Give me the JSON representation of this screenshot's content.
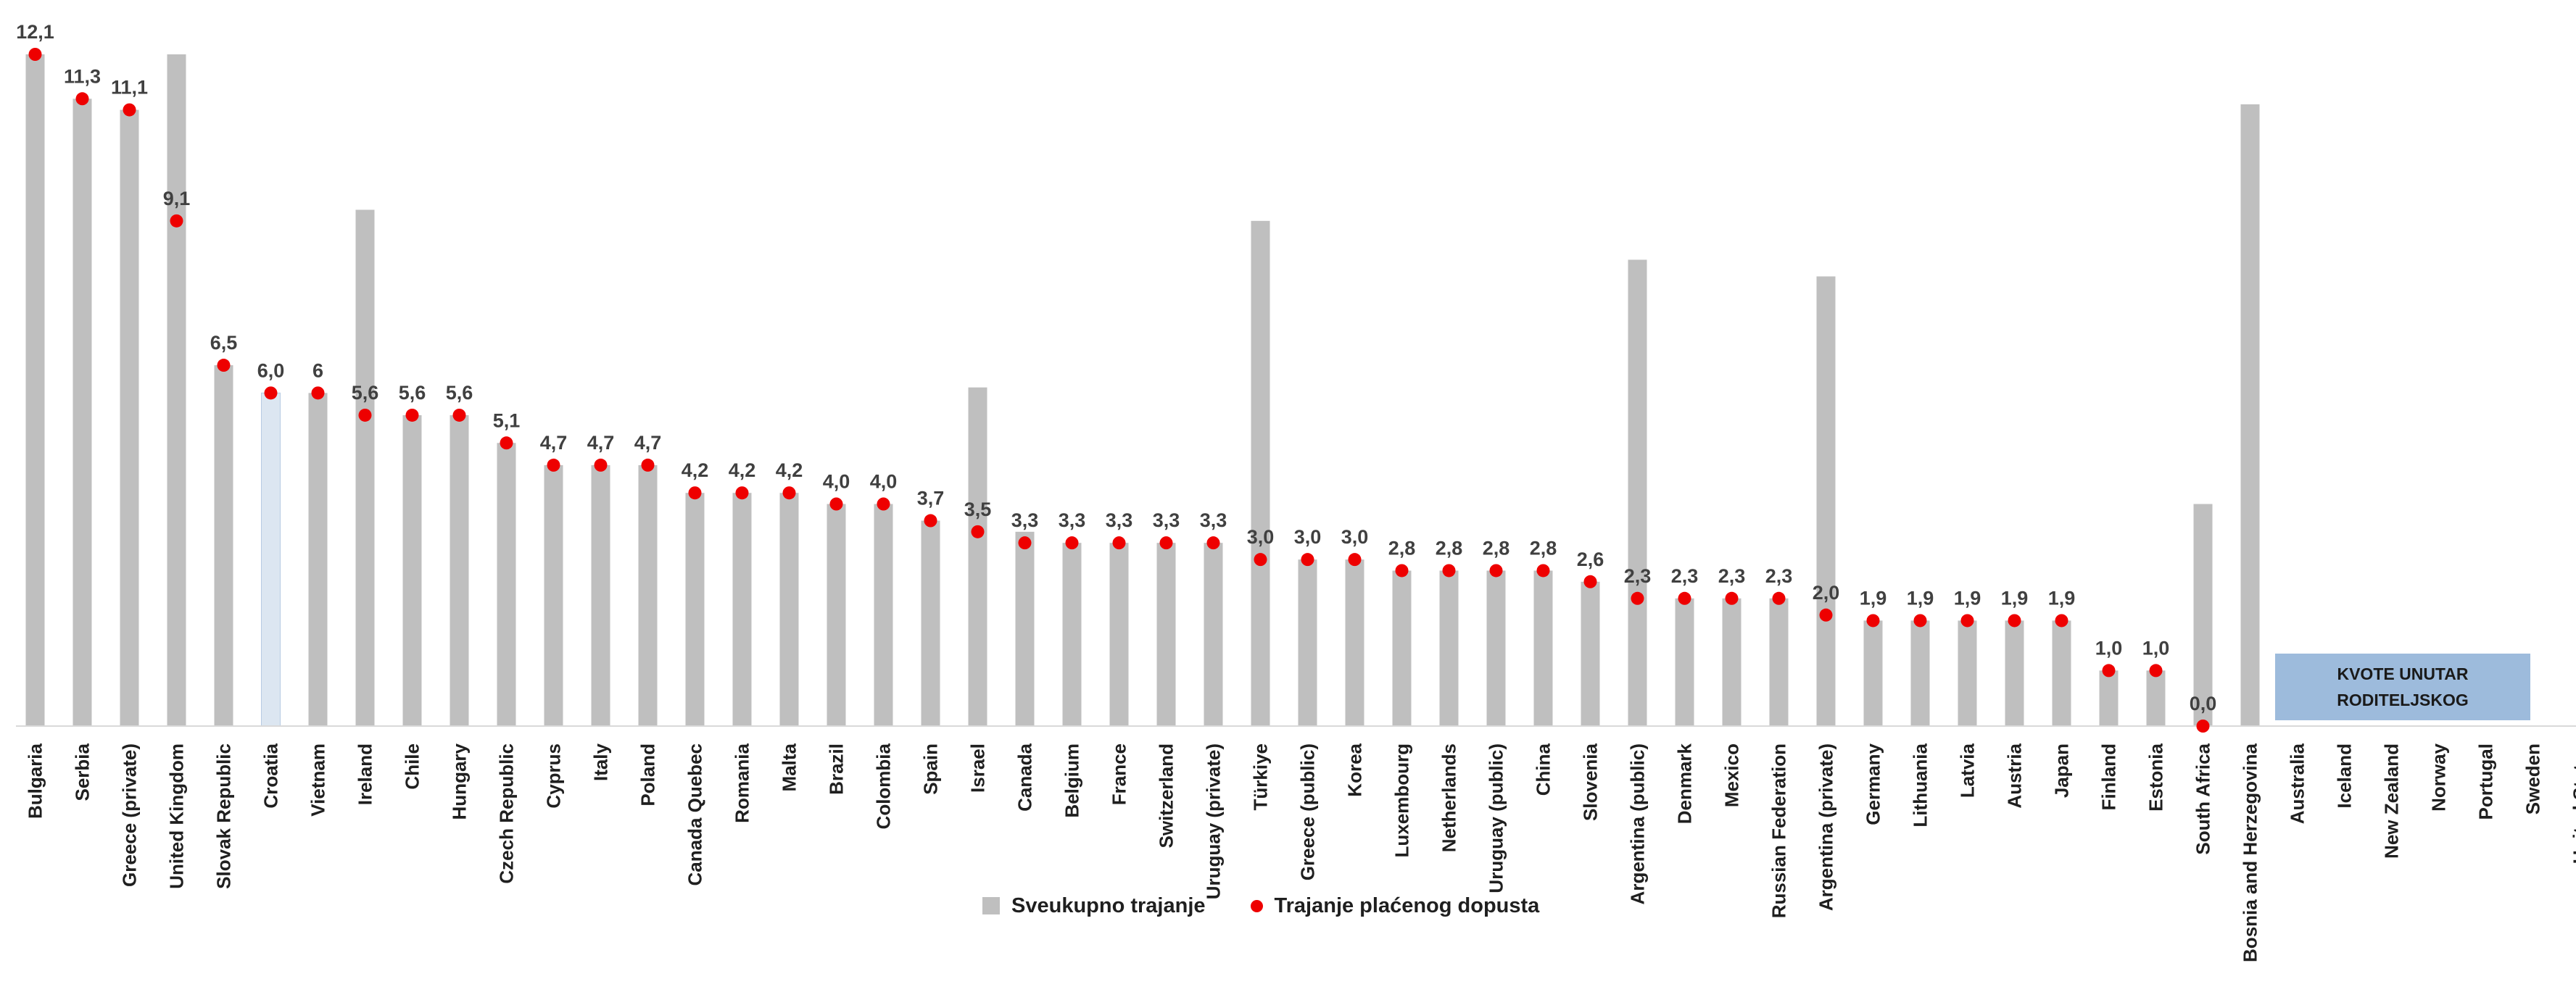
{
  "chart_data": {
    "type": "bar",
    "categories": [
      "Bulgaria",
      "Serbia",
      "Greece (private)",
      "United Kingdom",
      "Slovak Republic",
      "Croatia",
      "Vietnam",
      "Ireland",
      "Chile",
      "Hungary",
      "Czech Republic",
      "Cyprus",
      "Italy",
      "Poland",
      "Canada Quebec",
      "Romania",
      "Malta",
      "Brazil",
      "Colombia",
      "Spain",
      "Israel",
      "Canada",
      "Belgium",
      "France",
      "Switzerland",
      "Uruguay (private)",
      "Türkiye",
      "Greece (public)",
      "Korea",
      "Luxembourg",
      "Netherlands",
      "Uruguay (public)",
      "China",
      "Slovenia",
      "Argentina (public)",
      "Denmark",
      "Mexico",
      "Russian Federation",
      "Argentina (private)",
      "Germany",
      "Lithuania",
      "Latvia",
      "Austria",
      "Japan",
      "Finland",
      "Estonia",
      "South Africa",
      "Bosnia and Herzegovina",
      "Australia",
      "Iceland",
      "New Zealand",
      "Norway",
      "Portugal",
      "Sweden",
      "United States"
    ],
    "series": [
      {
        "name": "Sveukupno trajanje",
        "type": "bar",
        "color": "#bfbfbf",
        "highlight_color": "#dce6f1",
        "highlight_category": "Croatia",
        "values": [
          12.1,
          11.3,
          11.1,
          12.1,
          6.5,
          6.0,
          6.0,
          9.3,
          5.6,
          5.6,
          5.1,
          4.7,
          4.7,
          4.7,
          4.2,
          4.2,
          4.2,
          4.0,
          4.0,
          3.7,
          6.1,
          3.5,
          3.3,
          3.3,
          3.3,
          3.3,
          9.1,
          3.0,
          3.0,
          2.8,
          2.8,
          2.8,
          2.8,
          2.6,
          8.4,
          2.3,
          2.3,
          2.3,
          8.1,
          1.9,
          1.9,
          1.9,
          1.9,
          1.9,
          1.0,
          1.0,
          4.0,
          11.2,
          null,
          null,
          null,
          null,
          null,
          null,
          null
        ]
      },
      {
        "name": "Trajanje plaćenog dopusta",
        "type": "marker",
        "color": "#ee0000",
        "values": [
          12.1,
          11.3,
          11.1,
          9.1,
          6.5,
          6.0,
          6.0,
          5.6,
          5.6,
          5.6,
          5.1,
          4.7,
          4.7,
          4.7,
          4.2,
          4.2,
          4.2,
          4.0,
          4.0,
          3.7,
          3.5,
          3.3,
          3.3,
          3.3,
          3.3,
          3.3,
          3.0,
          3.0,
          3.0,
          2.8,
          2.8,
          2.8,
          2.8,
          2.6,
          2.3,
          2.3,
          2.3,
          2.3,
          2.0,
          1.9,
          1.9,
          1.9,
          1.9,
          1.9,
          1.0,
          1.0,
          0.0,
          null,
          null,
          null,
          null,
          null,
          null,
          null,
          null
        ]
      }
    ],
    "data_labels": [
      "12,1",
      "11,3",
      "11,1",
      "9,1",
      "6,5",
      "6,0",
      "6",
      "5,6",
      "5,6",
      "5,6",
      "5,1",
      "4,7",
      "4,7",
      "4,7",
      "4,2",
      "4,2",
      "4,2",
      "4,0",
      "4,0",
      "3,7",
      "3,5",
      "3,3",
      "3,3",
      "3,3",
      "3,3",
      "3,3",
      "3,0",
      "3,0",
      "3,0",
      "2,8",
      "2,8",
      "2,8",
      "2,8",
      "2,6",
      "2,3",
      "2,3",
      "2,3",
      "2,3",
      "2,0",
      "1,9",
      "1,9",
      "1,9",
      "1,9",
      "1,9",
      "1,0",
      "1,0",
      "0,0",
      null,
      null,
      null,
      null,
      null,
      null,
      null,
      null
    ],
    "ylim": [
      0,
      12.1
    ],
    "grid": false,
    "legend_position": "bottom",
    "annotation": {
      "lines": [
        "KVOTE UNUTAR",
        "RODITELJSKOG"
      ],
      "color": "#9dbbdc"
    }
  }
}
